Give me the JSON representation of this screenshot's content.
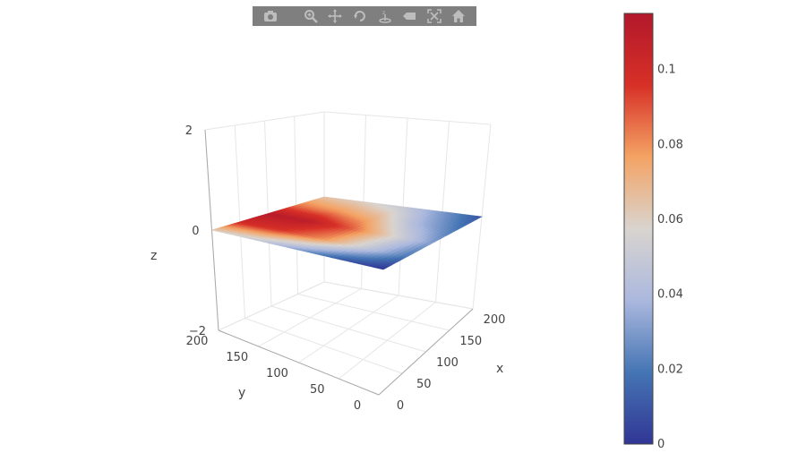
{
  "modebar": {
    "buttons": [
      {
        "name": "camera-icon",
        "title": "Download plot as a png"
      },
      {
        "name": "zoom-icon",
        "title": "Zoom"
      },
      {
        "name": "pan-icon",
        "title": "Pan"
      },
      {
        "name": "orbit-rotation-icon",
        "title": "Orbital rotation"
      },
      {
        "name": "turntable-rotation-icon",
        "title": "Turntable rotation"
      },
      {
        "name": "hover-label-icon",
        "title": "Show closest data on hover"
      },
      {
        "name": "autoscale-icon",
        "title": "Reset camera to default"
      },
      {
        "name": "home-icon",
        "title": "Reset camera to last save"
      }
    ]
  },
  "chart_data": {
    "type": "surface",
    "axes": {
      "x": {
        "title": "x",
        "range": [
          0,
          200
        ],
        "ticks": [
          "0",
          "50",
          "100",
          "150",
          "200"
        ]
      },
      "y": {
        "title": "y",
        "range": [
          0,
          200
        ],
        "ticks": [
          "0",
          "50",
          "100",
          "150",
          "200"
        ]
      },
      "z": {
        "title": "z",
        "range": [
          -2,
          2
        ],
        "ticks": [
          "−2",
          "0",
          "2"
        ]
      }
    },
    "colorbar": {
      "colorscale": "RdBu_r",
      "range": [
        0,
        0.115
      ],
      "ticks": [
        "0",
        "0.02",
        "0.04",
        "0.06",
        "0.08",
        "0.1"
      ],
      "tick_values": [
        0,
        0.02,
        0.04,
        0.06,
        0.08,
        0.1
      ],
      "colors": [
        "#313695",
        "#4575b4",
        "#abb8de",
        "#d9d4cf",
        "#f4a364",
        "#d73027",
        "#b2182b"
      ]
    },
    "surface_description_values": {
      "grid_x": [
        0,
        50,
        100,
        150,
        200
      ],
      "grid_y": [
        0,
        50,
        100,
        150,
        200
      ],
      "z_values": [
        [
          0.0,
          0.01,
          0.03,
          0.05,
          0.06
        ],
        [
          0.02,
          0.05,
          0.08,
          0.095,
          0.1
        ],
        [
          0.03,
          0.06,
          0.09,
          0.11,
          0.112
        ],
        [
          0.02,
          0.04,
          0.07,
          0.08,
          0.085
        ],
        [
          0.01,
          0.03,
          0.05,
          0.06,
          0.065
        ]
      ],
      "z_height": 0
    }
  }
}
